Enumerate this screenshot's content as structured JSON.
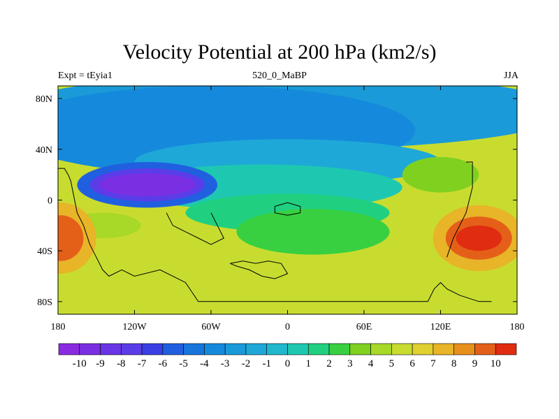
{
  "chart_data": {
    "type": "heatmap",
    "title": "Velocity Potential at 200 hPa (km2/s)",
    "subtitle_left": "Expt = tEyia1",
    "subtitle_center": "520_0_MaBP",
    "subtitle_right": "JJA",
    "x_ticks": [
      "180",
      "120W",
      "60W",
      "0",
      "60E",
      "120E",
      "180"
    ],
    "x_tick_values": [
      -180,
      -120,
      -60,
      0,
      60,
      120,
      180
    ],
    "y_ticks": [
      "80N",
      "40N",
      "0",
      "40S",
      "80S"
    ],
    "y_tick_values": [
      80,
      40,
      0,
      -40,
      -80
    ],
    "xlim": [
      -180,
      180
    ],
    "ylim": [
      -90,
      90
    ],
    "colorbar_labels": [
      "-10",
      "-9",
      "-8",
      "-7",
      "-6",
      "-5",
      "-4",
      "-3",
      "-2",
      "-1",
      "0",
      "1",
      "2",
      "3",
      "4",
      "5",
      "6",
      "7",
      "8",
      "9",
      "10"
    ],
    "colorbar_levels": [
      -10,
      10
    ],
    "features": [
      {
        "name": "low-center",
        "lon": -105,
        "lat": 10,
        "value": -9.5
      },
      {
        "name": "high-center-west",
        "lon": -180,
        "lat": -30,
        "value": 9
      },
      {
        "name": "high-center-east",
        "lon": 150,
        "lat": -30,
        "value": 9.5
      }
    ]
  },
  "colors": {
    "colorbar": [
      "#8a2be2",
      "#7b2fe3",
      "#6a35e6",
      "#5a3de8",
      "#3a3fe6",
      "#2060e0",
      "#1676dc",
      "#158adc",
      "#1a9ad8",
      "#1ea8d8",
      "#20b8cc",
      "#1ec8b0",
      "#20d080",
      "#38d040",
      "#80d020",
      "#a8d828",
      "#c8dc30",
      "#e0d030",
      "#e8b428",
      "#e8901c",
      "#e46018",
      "#e02c10"
    ]
  }
}
